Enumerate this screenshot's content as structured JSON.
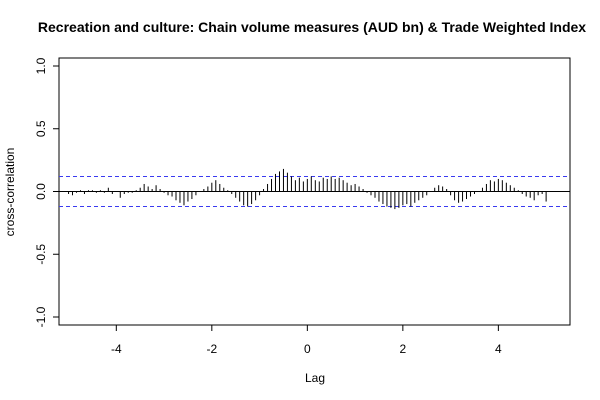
{
  "chart_data": {
    "type": "bar",
    "title": "Recreation and culture: Chain volume measures (AUD bn) & Trade Weighted Index",
    "xlabel": "Lag",
    "ylabel": "cross-correlation",
    "xlim": [
      -5.2,
      5.5
    ],
    "ylim": [
      -1.0,
      1.0
    ],
    "x_ticks": [
      -4,
      -2,
      0,
      2,
      4
    ],
    "y_ticks": [
      -1.0,
      -0.5,
      0.0,
      0.5,
      1.0
    ],
    "x_tick_labels": [
      "-4",
      "-2",
      "0",
      "2",
      "4"
    ],
    "y_tick_labels": [
      "-1.0",
      "-0.5",
      "0.0",
      "0.5",
      "1.0"
    ],
    "confidence_band": 0.12,
    "grid": false,
    "colors": {
      "bars": "#000000",
      "confidence": "#3a3af0",
      "zero_line": "#000000"
    },
    "x": [
      -5.0,
      -4.917,
      -4.833,
      -4.75,
      -4.667,
      -4.583,
      -4.5,
      -4.417,
      -4.333,
      -4.25,
      -4.167,
      -4.083,
      -4.0,
      -3.917,
      -3.833,
      -3.75,
      -3.667,
      -3.583,
      -3.5,
      -3.417,
      -3.333,
      -3.25,
      -3.167,
      -3.083,
      -3.0,
      -2.917,
      -2.833,
      -2.75,
      -2.667,
      -2.583,
      -2.5,
      -2.417,
      -2.333,
      -2.25,
      -2.167,
      -2.083,
      -2.0,
      -1.917,
      -1.833,
      -1.75,
      -1.667,
      -1.583,
      -1.5,
      -1.417,
      -1.333,
      -1.25,
      -1.167,
      -1.083,
      -1.0,
      -0.917,
      -0.833,
      -0.75,
      -0.667,
      -0.583,
      -0.5,
      -0.417,
      -0.333,
      -0.25,
      -0.167,
      -0.083,
      0.0,
      0.083,
      0.167,
      0.25,
      0.333,
      0.417,
      0.5,
      0.583,
      0.667,
      0.75,
      0.833,
      0.917,
      1.0,
      1.083,
      1.167,
      1.25,
      1.333,
      1.417,
      1.5,
      1.583,
      1.667,
      1.75,
      1.833,
      1.917,
      2.0,
      2.083,
      2.167,
      2.25,
      2.333,
      2.417,
      2.5,
      2.583,
      2.667,
      2.75,
      2.833,
      2.917,
      3.0,
      3.083,
      3.167,
      3.25,
      3.333,
      3.417,
      3.5,
      3.583,
      3.667,
      3.75,
      3.833,
      3.917,
      4.0,
      4.083,
      4.167,
      4.25,
      4.333,
      4.417,
      4.5,
      4.583,
      4.667,
      4.75,
      4.833,
      4.917,
      5.0
    ],
    "values": [
      -0.02,
      -0.03,
      -0.01,
      0.01,
      -0.02,
      0.01,
      0.01,
      -0.01,
      0.01,
      -0.01,
      0.03,
      -0.02,
      0.0,
      -0.05,
      -0.02,
      -0.01,
      -0.01,
      0.01,
      0.03,
      0.06,
      0.04,
      0.02,
      0.05,
      0.02,
      -0.01,
      -0.03,
      -0.04,
      -0.07,
      -0.09,
      -0.11,
      -0.08,
      -0.06,
      -0.03,
      0.0,
      0.02,
      0.04,
      0.07,
      0.09,
      0.06,
      0.03,
      0.01,
      -0.02,
      -0.05,
      -0.08,
      -0.11,
      -0.12,
      -0.1,
      -0.07,
      -0.03,
      0.02,
      0.06,
      0.1,
      0.14,
      0.16,
      0.18,
      0.15,
      0.12,
      0.09,
      0.11,
      0.08,
      0.1,
      0.12,
      0.09,
      0.08,
      0.11,
      0.1,
      0.12,
      0.1,
      0.11,
      0.09,
      0.07,
      0.05,
      0.06,
      0.04,
      0.02,
      -0.01,
      -0.03,
      -0.05,
      -0.08,
      -0.1,
      -0.12,
      -0.13,
      -0.14,
      -0.13,
      -0.11,
      -0.1,
      -0.12,
      -0.09,
      -0.07,
      -0.05,
      -0.03,
      0.0,
      0.03,
      0.05,
      0.04,
      0.02,
      -0.03,
      -0.07,
      -0.09,
      -0.08,
      -0.06,
      -0.04,
      -0.02,
      0.0,
      0.03,
      0.06,
      0.09,
      0.08,
      0.1,
      0.09,
      0.07,
      0.05,
      0.03,
      0.01,
      -0.02,
      -0.04,
      -0.05,
      -0.07,
      -0.03,
      -0.02,
      -0.08
    ]
  }
}
